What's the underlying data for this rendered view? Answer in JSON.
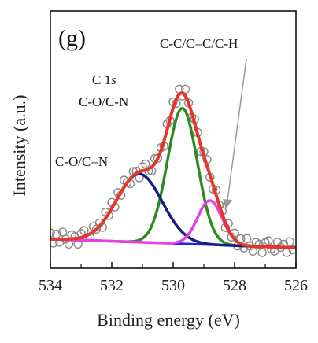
{
  "chart_data": {
    "type": "line",
    "panel_label": "(g)",
    "xlabel": "Binding energy (eV)",
    "ylabel": "Intensity (a.u.)",
    "xlim": [
      534,
      526
    ],
    "x_reversed": true,
    "ylim": [
      0,
      1
    ],
    "xticks": [
      534,
      532,
      530,
      528,
      526
    ],
    "yticks_shown": false,
    "grid": false,
    "legend": "none",
    "annotations": {
      "spectrum": "C 1s",
      "peak_main": "C-C/C=C/C-H",
      "peak_mid": "C-O/C-N",
      "peak_high": "C-O/C=N"
    },
    "background": {
      "color": "#1a2ae8",
      "y_at_534": 0.044,
      "y_at_526": 0.0
    },
    "components": [
      {
        "label_key": "peak_main",
        "center": 529.7,
        "fwhm": 1.15,
        "height": 0.675,
        "color": "#2e8b22"
      },
      {
        "label_key": "peak_high",
        "center": 531.1,
        "fwhm": 1.75,
        "height": 0.34,
        "color": "#1c1c80"
      },
      {
        "label_key": "peak_mid",
        "center": 528.8,
        "fwhm": 0.95,
        "height": 0.22,
        "color": "#e83ee8"
      }
    ],
    "envelope": {
      "color": "#e8352a"
    },
    "experimental": {
      "marker": "open-circle",
      "color": "#888888",
      "x_start": 534,
      "x_end": 526.1,
      "step": 0.1,
      "noise": [
        0.03,
        -0.02,
        0.025,
        -0.015,
        0.035,
        0.0,
        -0.025,
        0.02,
        0.01,
        -0.03,
        0.02,
        0.03,
        -0.01,
        -0.02,
        0.025,
        0.0,
        0.015,
        -0.025,
        0.03,
        -0.01
      ]
    }
  }
}
